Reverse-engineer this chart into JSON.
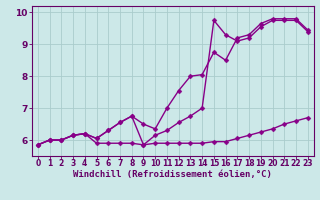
{
  "title": "",
  "xlabel": "Windchill (Refroidissement éolien,°C)",
  "xlim": [
    -0.5,
    23.5
  ],
  "ylim": [
    5.5,
    10.2
  ],
  "xticks": [
    0,
    1,
    2,
    3,
    4,
    5,
    6,
    7,
    8,
    9,
    10,
    11,
    12,
    13,
    14,
    15,
    16,
    17,
    18,
    19,
    20,
    21,
    22,
    23
  ],
  "yticks": [
    6,
    7,
    8,
    9,
    10
  ],
  "bg_color": "#cce8e8",
  "grid_color": "#aacccc",
  "line_color": "#880088",
  "line1_x": [
    0,
    1,
    2,
    3,
    4,
    5,
    6,
    7,
    8,
    9,
    10,
    11,
    12,
    13,
    14,
    15,
    16,
    17,
    18,
    19,
    20,
    21,
    22,
    23
  ],
  "line1_y": [
    5.85,
    6.0,
    6.0,
    6.15,
    6.2,
    5.9,
    5.9,
    5.9,
    5.9,
    5.85,
    5.9,
    5.9,
    5.9,
    5.9,
    5.9,
    5.95,
    5.95,
    6.05,
    6.15,
    6.25,
    6.35,
    6.5,
    6.6,
    6.7
  ],
  "line2_x": [
    0,
    1,
    2,
    3,
    4,
    5,
    6,
    7,
    8,
    9,
    10,
    11,
    12,
    13,
    14,
    15,
    16,
    17,
    18,
    19,
    20,
    21,
    22,
    23
  ],
  "line2_y": [
    5.85,
    6.0,
    6.0,
    6.15,
    6.2,
    6.05,
    6.3,
    6.55,
    6.75,
    6.5,
    6.35,
    7.0,
    7.55,
    8.0,
    8.05,
    8.75,
    8.5,
    9.2,
    9.3,
    9.65,
    9.8,
    9.8,
    9.8,
    9.45
  ],
  "line3_x": [
    0,
    1,
    2,
    3,
    4,
    5,
    6,
    7,
    8,
    9,
    10,
    11,
    12,
    13,
    14,
    15,
    16,
    17,
    18,
    19,
    20,
    21,
    22,
    23
  ],
  "line3_y": [
    5.85,
    6.0,
    6.0,
    6.15,
    6.2,
    6.05,
    6.3,
    6.55,
    6.75,
    5.85,
    6.15,
    6.3,
    6.55,
    6.75,
    7.0,
    9.75,
    9.3,
    9.1,
    9.2,
    9.55,
    9.75,
    9.75,
    9.75,
    9.4
  ],
  "marker": "D",
  "markersize": 2.5,
  "linewidth": 1.0,
  "font_color": "#660066",
  "tick_fontsize": 5.5,
  "xlabel_fontsize": 6.5
}
